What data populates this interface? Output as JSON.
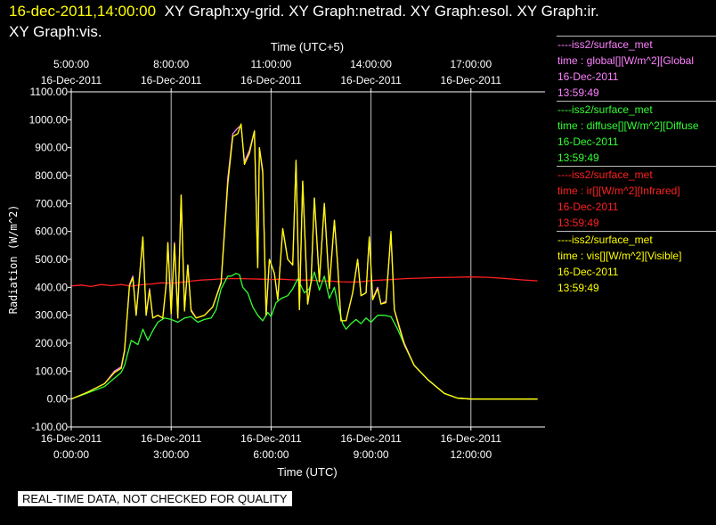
{
  "header": {
    "timestamp": "16-dec-2011,14:00:00",
    "line1_rest": "XY Graph:xy-grid.  XY Graph:netrad.  XY Graph:esol.  XY Graph:ir.",
    "line2": "XY Graph:vis."
  },
  "legend": [
    {
      "source": "----iss2/surface_met",
      "variable": "time : global[][W/m^2][Global",
      "date": "16-Dec-2011",
      "time": "13:59:49",
      "color": "#ff80ff"
    },
    {
      "source": "----iss2/surface_met",
      "variable": "time : diffuse[][W/m^2][Diffuse",
      "date": "16-Dec-2011",
      "time": "13:59:49",
      "color": "#33ff33"
    },
    {
      "source": "----iss2/surface_met",
      "variable": "time : ir[][W/m^2][Infrared]",
      "date": "16-Dec-2011",
      "time": "13:59:49",
      "color": "#ff2020"
    },
    {
      "source": "----iss2/surface_met",
      "variable": "time : vis[][W/m^2][Visible]",
      "date": "16-Dec-2011",
      "time": "13:59:49",
      "color": "#ffff00"
    }
  ],
  "notice": "REAL-TIME DATA, NOT CHECKED FOR QUALITY",
  "chart_data": {
    "type": "line",
    "top_axis_title": "Time (UTC+5)",
    "xlabel": "Time (UTC)",
    "ylabel": "Radiation  (W/m^2)",
    "xlim": [
      0,
      14
    ],
    "ylim": [
      -100,
      1100
    ],
    "grid": true,
    "yticks": [
      "1100.00",
      "1000.00",
      "900.00",
      "800.00",
      "700.00",
      "600.00",
      "500.00",
      "400.00",
      "300.00",
      "200.00",
      "100.00",
      "0.00",
      "-100.00"
    ],
    "xticks_bottom": [
      {
        "at": 0,
        "date": "16-Dec-2011",
        "time": "0:00:00"
      },
      {
        "at": 3,
        "date": "16-Dec-2011",
        "time": "3:00:00"
      },
      {
        "at": 6,
        "date": "16-Dec-2011",
        "time": "6:00:00"
      },
      {
        "at": 9,
        "date": "16-Dec-2011",
        "time": "9:00:00"
      },
      {
        "at": 12,
        "date": "16-Dec-2011",
        "time": "12:00:00"
      }
    ],
    "xticks_top": [
      {
        "at": 0,
        "time": "5:00:00",
        "date": "16-Dec-2011"
      },
      {
        "at": 3,
        "time": "8:00:00",
        "date": "16-Dec-2011"
      },
      {
        "at": 6,
        "time": "11:00:00",
        "date": "16-Dec-2011"
      },
      {
        "at": 9,
        "time": "14:00:00",
        "date": "16-Dec-2011"
      },
      {
        "at": 12,
        "time": "17:00:00",
        "date": "16-Dec-2011"
      }
    ],
    "series": [
      {
        "name": "global",
        "color": "#ff80ff",
        "points": [
          [
            0,
            0
          ],
          [
            0.5,
            25
          ],
          [
            1,
            55
          ],
          [
            1.3,
            100
          ],
          [
            1.5,
            115
          ],
          [
            1.6,
            175
          ],
          [
            1.7,
            330
          ],
          [
            1.75,
            410
          ],
          [
            1.85,
            440
          ],
          [
            1.95,
            300
          ],
          [
            2.05,
            440
          ],
          [
            2.15,
            580
          ],
          [
            2.25,
            300
          ],
          [
            2.35,
            395
          ],
          [
            2.45,
            290
          ],
          [
            2.6,
            300
          ],
          [
            2.75,
            290
          ],
          [
            2.85,
            410
          ],
          [
            2.9,
            560
          ],
          [
            3.0,
            305
          ],
          [
            3.1,
            560
          ],
          [
            3.2,
            290
          ],
          [
            3.3,
            730
          ],
          [
            3.4,
            320
          ],
          [
            3.5,
            480
          ],
          [
            3.6,
            320
          ],
          [
            3.75,
            290
          ],
          [
            4.0,
            300
          ],
          [
            4.25,
            330
          ],
          [
            4.5,
            420
          ],
          [
            4.7,
            790
          ],
          [
            4.85,
            950
          ],
          [
            5.0,
            970
          ],
          [
            5.1,
            980
          ],
          [
            5.2,
            850
          ],
          [
            5.35,
            890
          ],
          [
            5.5,
            960
          ],
          [
            5.6,
            470
          ],
          [
            5.65,
            900
          ],
          [
            5.75,
            820
          ],
          [
            5.85,
            300
          ],
          [
            5.95,
            500
          ],
          [
            6.1,
            450
          ],
          [
            6.2,
            360
          ],
          [
            6.35,
            610
          ],
          [
            6.5,
            500
          ],
          [
            6.65,
            480
          ],
          [
            6.75,
            850
          ],
          [
            6.85,
            320
          ],
          [
            6.95,
            780
          ],
          [
            7.1,
            340
          ],
          [
            7.2,
            420
          ],
          [
            7.3,
            720
          ],
          [
            7.45,
            420
          ],
          [
            7.6,
            700
          ],
          [
            7.75,
            400
          ],
          [
            7.9,
            640
          ],
          [
            8.0,
            480
          ],
          [
            8.1,
            280
          ],
          [
            8.25,
            280
          ],
          [
            8.45,
            380
          ],
          [
            8.6,
            500
          ],
          [
            8.7,
            370
          ],
          [
            8.85,
            380
          ],
          [
            8.95,
            580
          ],
          [
            9.05,
            360
          ],
          [
            9.2,
            400
          ],
          [
            9.3,
            340
          ],
          [
            9.45,
            350
          ],
          [
            9.6,
            590
          ],
          [
            9.7,
            320
          ],
          [
            9.85,
            260
          ],
          [
            10.0,
            200
          ],
          [
            10.3,
            120
          ],
          [
            10.7,
            70
          ],
          [
            11.2,
            20
          ],
          [
            11.6,
            3
          ],
          [
            12.0,
            0
          ],
          [
            14.0,
            0
          ]
        ]
      },
      {
        "name": "diffuse",
        "color": "#33ff33",
        "points": [
          [
            0,
            0
          ],
          [
            0.5,
            22
          ],
          [
            1,
            45
          ],
          [
            1.3,
            75
          ],
          [
            1.5,
            95
          ],
          [
            1.6,
            120
          ],
          [
            1.7,
            165
          ],
          [
            1.8,
            210
          ],
          [
            2.0,
            195
          ],
          [
            2.15,
            250
          ],
          [
            2.3,
            210
          ],
          [
            2.45,
            245
          ],
          [
            2.6,
            275
          ],
          [
            2.8,
            290
          ],
          [
            3.0,
            285
          ],
          [
            3.2,
            275
          ],
          [
            3.4,
            290
          ],
          [
            3.6,
            295
          ],
          [
            3.8,
            275
          ],
          [
            4.0,
            285
          ],
          [
            4.2,
            290
          ],
          [
            4.35,
            320
          ],
          [
            4.5,
            395
          ],
          [
            4.7,
            440
          ],
          [
            4.8,
            440
          ],
          [
            4.95,
            450
          ],
          [
            5.05,
            445
          ],
          [
            5.15,
            400
          ],
          [
            5.3,
            380
          ],
          [
            5.45,
            330
          ],
          [
            5.6,
            300
          ],
          [
            5.75,
            280
          ],
          [
            5.9,
            310
          ],
          [
            6.0,
            295
          ],
          [
            6.15,
            345
          ],
          [
            6.3,
            360
          ],
          [
            6.5,
            370
          ],
          [
            6.65,
            395
          ],
          [
            6.8,
            430
          ],
          [
            7.0,
            380
          ],
          [
            7.15,
            395
          ],
          [
            7.3,
            455
          ],
          [
            7.45,
            390
          ],
          [
            7.6,
            440
          ],
          [
            7.75,
            360
          ],
          [
            7.9,
            400
          ],
          [
            8.0,
            340
          ],
          [
            8.15,
            270
          ],
          [
            8.25,
            250
          ],
          [
            8.4,
            270
          ],
          [
            8.55,
            285
          ],
          [
            8.7,
            270
          ],
          [
            8.85,
            290
          ],
          [
            9.0,
            275
          ],
          [
            9.2,
            300
          ],
          [
            9.4,
            300
          ],
          [
            9.6,
            295
          ],
          [
            9.8,
            250
          ],
          [
            10.0,
            195
          ],
          [
            10.3,
            120
          ],
          [
            10.7,
            70
          ],
          [
            11.2,
            20
          ],
          [
            11.6,
            3
          ],
          [
            12.0,
            0
          ],
          [
            14.0,
            0
          ]
        ]
      },
      {
        "name": "ir",
        "color": "#ff2020",
        "points": [
          [
            0,
            405
          ],
          [
            0.3,
            408
          ],
          [
            0.6,
            403
          ],
          [
            0.9,
            410
          ],
          [
            1.2,
            406
          ],
          [
            1.5,
            410
          ],
          [
            1.8,
            404
          ],
          [
            2.1,
            409
          ],
          [
            2.4,
            412
          ],
          [
            2.7,
            416
          ],
          [
            3.0,
            414
          ],
          [
            3.3,
            418
          ],
          [
            3.6,
            422
          ],
          [
            3.9,
            426
          ],
          [
            4.2,
            428
          ],
          [
            4.5,
            430
          ],
          [
            4.8,
            431
          ],
          [
            5.1,
            431
          ],
          [
            5.4,
            430
          ],
          [
            5.7,
            429
          ],
          [
            6.0,
            428
          ],
          [
            6.3,
            429
          ],
          [
            6.6,
            427
          ],
          [
            6.9,
            426
          ],
          [
            7.2,
            426
          ],
          [
            7.5,
            423
          ],
          [
            7.8,
            422
          ],
          [
            8.1,
            420
          ],
          [
            8.4,
            419
          ],
          [
            8.7,
            420
          ],
          [
            9.0,
            424
          ],
          [
            9.3,
            426
          ],
          [
            9.6,
            428
          ],
          [
            10.0,
            431
          ],
          [
            10.5,
            433
          ],
          [
            11.0,
            435
          ],
          [
            11.5,
            436
          ],
          [
            12.0,
            437
          ],
          [
            12.5,
            436
          ],
          [
            13.0,
            432
          ],
          [
            13.5,
            427
          ],
          [
            14.0,
            423
          ]
        ]
      },
      {
        "name": "vis",
        "color": "#ffff00",
        "points": [
          [
            0,
            0
          ],
          [
            0.5,
            25
          ],
          [
            1,
            55
          ],
          [
            1.3,
            95
          ],
          [
            1.5,
            110
          ],
          [
            1.6,
            170
          ],
          [
            1.7,
            330
          ],
          [
            1.75,
            405
          ],
          [
            1.85,
            435
          ],
          [
            1.95,
            300
          ],
          [
            2.05,
            440
          ],
          [
            2.15,
            580
          ],
          [
            2.25,
            300
          ],
          [
            2.35,
            390
          ],
          [
            2.45,
            290
          ],
          [
            2.6,
            300
          ],
          [
            2.75,
            290
          ],
          [
            2.85,
            410
          ],
          [
            2.9,
            560
          ],
          [
            3.0,
            305
          ],
          [
            3.1,
            555
          ],
          [
            3.2,
            290
          ],
          [
            3.3,
            730
          ],
          [
            3.4,
            315
          ],
          [
            3.5,
            480
          ],
          [
            3.6,
            315
          ],
          [
            3.75,
            290
          ],
          [
            4.0,
            300
          ],
          [
            4.25,
            330
          ],
          [
            4.5,
            415
          ],
          [
            4.7,
            770
          ],
          [
            4.85,
            940
          ],
          [
            5.0,
            950
          ],
          [
            5.1,
            985
          ],
          [
            5.2,
            840
          ],
          [
            5.35,
            880
          ],
          [
            5.5,
            960
          ],
          [
            5.6,
            470
          ],
          [
            5.65,
            900
          ],
          [
            5.75,
            810
          ],
          [
            5.85,
            300
          ],
          [
            5.95,
            500
          ],
          [
            6.1,
            450
          ],
          [
            6.2,
            355
          ],
          [
            6.35,
            610
          ],
          [
            6.5,
            500
          ],
          [
            6.65,
            480
          ],
          [
            6.75,
            855
          ],
          [
            6.85,
            320
          ],
          [
            6.95,
            780
          ],
          [
            7.1,
            340
          ],
          [
            7.2,
            420
          ],
          [
            7.3,
            720
          ],
          [
            7.45,
            420
          ],
          [
            7.6,
            700
          ],
          [
            7.75,
            395
          ],
          [
            7.9,
            640
          ],
          [
            8.0,
            480
          ],
          [
            8.1,
            280
          ],
          [
            8.25,
            280
          ],
          [
            8.45,
            380
          ],
          [
            8.6,
            500
          ],
          [
            8.7,
            370
          ],
          [
            8.85,
            380
          ],
          [
            8.95,
            580
          ],
          [
            9.05,
            355
          ],
          [
            9.2,
            395
          ],
          [
            9.3,
            340
          ],
          [
            9.45,
            345
          ],
          [
            9.6,
            600
          ],
          [
            9.7,
            320
          ],
          [
            9.85,
            255
          ],
          [
            10.0,
            195
          ],
          [
            10.3,
            120
          ],
          [
            10.7,
            70
          ],
          [
            11.2,
            20
          ],
          [
            11.6,
            3
          ],
          [
            12.0,
            0
          ],
          [
            14.0,
            0
          ]
        ]
      }
    ]
  }
}
